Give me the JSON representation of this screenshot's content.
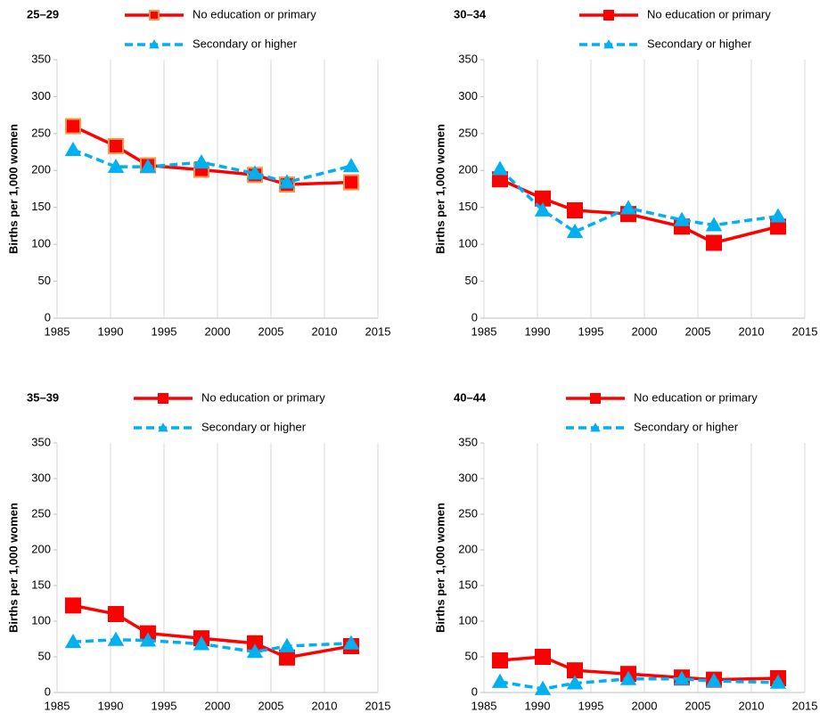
{
  "chart_data": [
    {
      "type": "line",
      "title": "25–29",
      "y_label": "Births per 1,000 women",
      "x": [
        1986.5,
        1990.5,
        1993.5,
        1998.5,
        2003.5,
        2006.5,
        2012.5
      ],
      "series": [
        {
          "name": "No education or primary",
          "color": "#ff0000",
          "marker_edge": "#f79646",
          "values": [
            260,
            233,
            207,
            201,
            194,
            181,
            184
          ]
        },
        {
          "name": "Secondary or higher",
          "color": "#00b0f0",
          "values": [
            228,
            205,
            205,
            211,
            196,
            184,
            206
          ]
        }
      ],
      "xlim": [
        1985,
        2015
      ],
      "xticks": [
        1985,
        1990,
        1995,
        2000,
        2005,
        2010,
        2015
      ],
      "ylim": [
        0,
        350
      ],
      "yticks": [
        0,
        50,
        100,
        150,
        200,
        250,
        300,
        350
      ],
      "grid": "x"
    },
    {
      "type": "line",
      "title": "30–34",
      "y_label": "Births per 1,000 women",
      "x": [
        1986.5,
        1990.5,
        1993.5,
        1998.5,
        2003.5,
        2006.5,
        2012.5
      ],
      "series": [
        {
          "name": "No education or primary",
          "color": "#ff0000",
          "values": [
            188,
            162,
            146,
            141,
            124,
            102,
            124
          ]
        },
        {
          "name": "Secondary or higher",
          "color": "#00b0f0",
          "values": [
            202,
            146,
            117,
            149,
            133,
            126,
            138
          ]
        }
      ],
      "xlim": [
        1985,
        2015
      ],
      "xticks": [
        1985,
        1990,
        1995,
        2000,
        2005,
        2010,
        2015
      ],
      "ylim": [
        0,
        350
      ],
      "yticks": [
        0,
        50,
        100,
        150,
        200,
        250,
        300,
        350
      ],
      "grid": "x"
    },
    {
      "type": "line",
      "title": "35–39",
      "y_label": "Births per 1,000 women",
      "x": [
        1986.5,
        1990.5,
        1993.5,
        1998.5,
        2003.5,
        2006.5,
        2012.5
      ],
      "series": [
        {
          "name": "No education or primary",
          "color": "#ff0000",
          "values": [
            122,
            110,
            83,
            76,
            69,
            49,
            65
          ]
        },
        {
          "name": "Secondary or higher",
          "color": "#00b0f0",
          "values": [
            71,
            74,
            73,
            68,
            57,
            65,
            69
          ]
        }
      ],
      "xlim": [
        1985,
        2015
      ],
      "xticks": [
        1985,
        1990,
        1995,
        2000,
        2005,
        2010,
        2015
      ],
      "ylim": [
        0,
        350
      ],
      "yticks": [
        0,
        50,
        100,
        150,
        200,
        250,
        300,
        350
      ],
      "grid": "x"
    },
    {
      "type": "line",
      "title": "40–44",
      "y_label": "Births per 1,000 women",
      "x": [
        1986.5,
        1990.5,
        1993.5,
        1998.5,
        2003.5,
        2006.5,
        2012.5
      ],
      "series": [
        {
          "name": "No education or primary",
          "color": "#ff0000",
          "values": [
            45,
            50,
            31,
            26,
            21,
            18,
            20
          ]
        },
        {
          "name": "Secondary or higher",
          "color": "#00b0f0",
          "values": [
            15,
            5,
            13,
            19,
            19,
            16,
            14
          ]
        }
      ],
      "xlim": [
        1985,
        2015
      ],
      "xticks": [
        1985,
        1990,
        1995,
        2000,
        2005,
        2010,
        2015
      ],
      "ylim": [
        0,
        350
      ],
      "yticks": [
        0,
        50,
        100,
        150,
        200,
        250,
        300,
        350
      ],
      "grid": "x"
    }
  ]
}
